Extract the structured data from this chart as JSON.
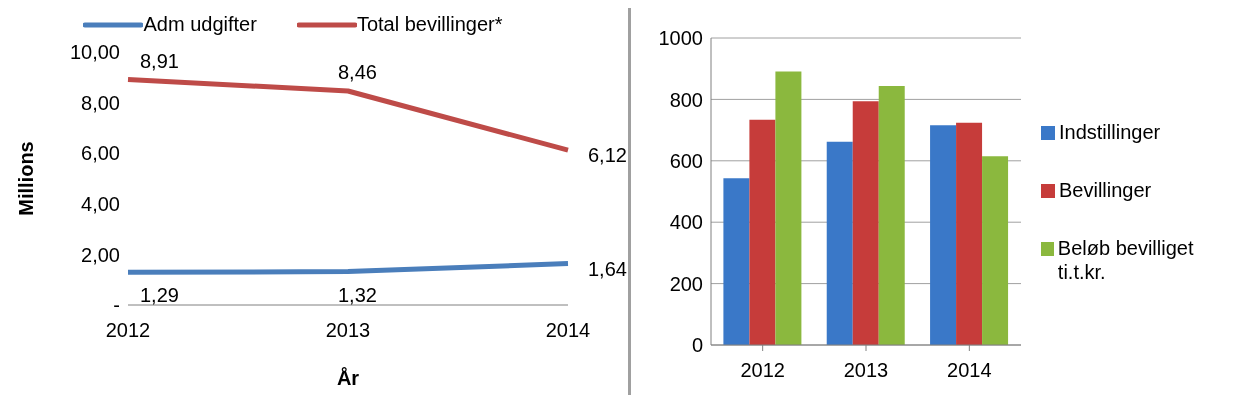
{
  "chart_data": [
    {
      "type": "line",
      "categories": [
        "2012",
        "2013",
        "2014"
      ],
      "xlabel": "År",
      "ylabel": "Millions",
      "ylim": [
        0,
        10
      ],
      "yticks": [
        {
          "value": 0,
          "label": "-"
        },
        {
          "value": 2,
          "label": "2,00"
        },
        {
          "value": 4,
          "label": "4,00"
        },
        {
          "value": 6,
          "label": "6,00"
        },
        {
          "value": 8,
          "label": "8,00"
        },
        {
          "value": 10,
          "label": "10,00"
        }
      ],
      "series": [
        {
          "name": "Adm udgifter",
          "color": "#4a7ebb",
          "values": [
            1.29,
            1.32,
            1.64
          ],
          "value_labels": [
            "1,29",
            "1,32",
            "1,64"
          ]
        },
        {
          "name": "Total bevillinger*",
          "color": "#be4b48",
          "values": [
            8.91,
            8.46,
            6.12
          ],
          "value_labels": [
            "8,91",
            "8,46",
            "6,12"
          ]
        }
      ],
      "grid": false,
      "legend": "top",
      "marker": "none",
      "line_style": "solid"
    },
    {
      "type": "bar",
      "categories": [
        "2012",
        "2013",
        "2014"
      ],
      "ylim": [
        0,
        1000
      ],
      "yticks": [
        0,
        200,
        400,
        600,
        800,
        1000
      ],
      "series": [
        {
          "name": "Indstillinger",
          "color": "#3a78c8",
          "values": [
            543,
            662,
            716
          ]
        },
        {
          "name": "Bevillinger",
          "color": "#c63c3a",
          "values": [
            734,
            794,
            724
          ]
        },
        {
          "name": "Beløb bevilliget ti.t.kr.",
          "color": "#8bb83e",
          "values": [
            891,
            844,
            615
          ]
        }
      ],
      "grid": "y",
      "legend": "right"
    }
  ]
}
